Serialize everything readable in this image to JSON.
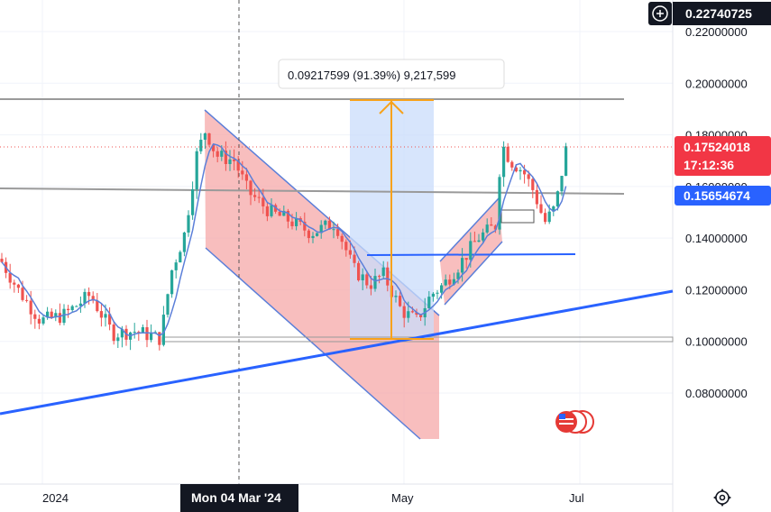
{
  "crosshair": {
    "price_label": "0.22740725",
    "date_label": "Mon 04 Mar '24"
  },
  "measure": {
    "label": "0.09217599 (91.39%) 9,217,599"
  },
  "badges": {
    "last_price": "0.17524018",
    "countdown": "17:12:36",
    "ma_price": "0.15654674"
  },
  "colors": {
    "up": "#26a69a",
    "down": "#ef5350",
    "ma_line": "#5b7fd9",
    "trend_blue": "#2962ff",
    "measure_orange": "#f7a21b",
    "channel_fill": "#f6a8a8",
    "level_gray": "#999999",
    "badge_red": "#f23645",
    "badge_blue": "#2962ff"
  },
  "icons": {
    "crosshair_add": "plus-circle-icon",
    "settings": "gear-icon",
    "events": "us-flag-icon"
  },
  "chart_data": {
    "type": "candlestick",
    "y_ticks": [
      "0.22000000",
      "0.20000000",
      "0.18000000",
      "0.16000000",
      "0.14000000",
      "0.12000000",
      "0.10000000",
      "0.08000000"
    ],
    "x_ticks": [
      "2024",
      "May",
      "Jul"
    ],
    "ylim": [
      0.066,
      0.229
    ],
    "horizontal_levels": [
      0.193,
      0.1565,
      0.134,
      0.1005
    ],
    "measured_move": {
      "from": 0.1005,
      "to": 0.1925,
      "change": "0.09217599",
      "percent": "91.39%"
    },
    "last_price": 0.17524018,
    "moving_average_last": 0.15654674
  }
}
